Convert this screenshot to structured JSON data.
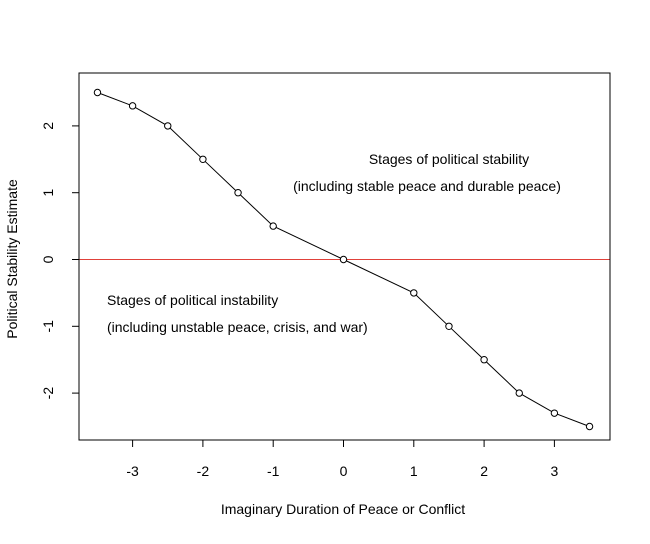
{
  "chart_data": {
    "type": "line",
    "title": "",
    "xlabel": "Imaginary Duration of Peace or Conflict",
    "ylabel": "Political Stability Estimate",
    "xlim": [
      -3.5,
      3.5
    ],
    "ylim": [
      -2.5,
      2.5
    ],
    "x_ticks": [
      -3,
      -2,
      -1,
      0,
      1,
      2,
      3
    ],
    "x_tick_labels": [
      "-3",
      "-2",
      "-1",
      "0",
      "1",
      "2",
      "3"
    ],
    "y_ticks": [
      -2,
      -1,
      0,
      1,
      2
    ],
    "y_tick_labels": [
      "-2",
      "-1",
      "0",
      "1",
      "2"
    ],
    "grid": false,
    "series": [
      {
        "x": [
          -3.5,
          -3,
          -2.5,
          -2,
          -1.5,
          -1,
          0,
          1,
          1.5,
          2,
          2.5,
          3,
          3.5
        ],
        "y": [
          2.5,
          2.3,
          2.0,
          1.5,
          1.0,
          0.5,
          0.0,
          -0.5,
          -1.0,
          -1.5,
          -2.0,
          -2.3,
          -2.5
        ],
        "color": "#000000",
        "marker": "open-circle"
      }
    ],
    "reference_line": {
      "y": 0,
      "color": "#e0413a"
    },
    "annotations": {
      "stability_line1": "Stages of political stability",
      "stability_line2": "(including stable peace and durable peace)",
      "instability_line1": "Stages of political instability",
      "instability_line2": "(including unstable peace, crisis, and war)"
    }
  }
}
